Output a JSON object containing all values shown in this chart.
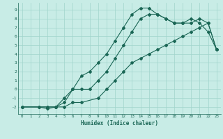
{
  "xlabel": "Humidex (Indice chaleur)",
  "bg_color": "#c8ece6",
  "grid_color": "#a0d4cc",
  "line_color": "#1a6655",
  "xlim": [
    -0.5,
    23.5
  ],
  "ylim": [
    -2.8,
    9.8
  ],
  "xticks": [
    0,
    1,
    2,
    3,
    4,
    5,
    6,
    7,
    8,
    9,
    10,
    11,
    12,
    13,
    14,
    15,
    16,
    17,
    18,
    19,
    20,
    21,
    22,
    23
  ],
  "yticks": [
    -2,
    -1,
    0,
    1,
    2,
    3,
    4,
    5,
    6,
    7,
    8,
    9
  ],
  "line1_x": [
    0,
    2,
    3,
    4,
    5,
    6,
    7,
    8,
    9,
    10,
    11,
    12,
    13,
    14,
    15,
    16,
    17,
    18,
    19,
    20,
    21,
    22,
    23
  ],
  "line1_y": [
    -2,
    -2,
    -2,
    -2,
    -1,
    0,
    1.5,
    2,
    3,
    4,
    5.5,
    7,
    8.5,
    9.2,
    9.2,
    8.5,
    8,
    7.5,
    7.5,
    8,
    7.5,
    6.5,
    4.5
  ],
  "line2_x": [
    0,
    3,
    4,
    5,
    6,
    7,
    8,
    9,
    10,
    11,
    12,
    13,
    14,
    15,
    16,
    17,
    18,
    19,
    20,
    21,
    22,
    23
  ],
  "line2_y": [
    -2,
    -2,
    -2,
    -1.5,
    0,
    0,
    0,
    1,
    2,
    3.5,
    5,
    6.5,
    8,
    8.5,
    8.5,
    8,
    7.5,
    7.5,
    7.5,
    8,
    7.5,
    4.5
  ],
  "line3_x": [
    0,
    2,
    3,
    4,
    5,
    6,
    7,
    9,
    10,
    11,
    12,
    13,
    14,
    15,
    16,
    17,
    18,
    19,
    20,
    21,
    22,
    23
  ],
  "line3_y": [
    -2,
    -2,
    -2.2,
    -2,
    -2,
    -1.5,
    -1.5,
    -1,
    0,
    1,
    2,
    3,
    3.5,
    4,
    4.5,
    5,
    5.5,
    6,
    6.5,
    7,
    7.5,
    4.5
  ]
}
